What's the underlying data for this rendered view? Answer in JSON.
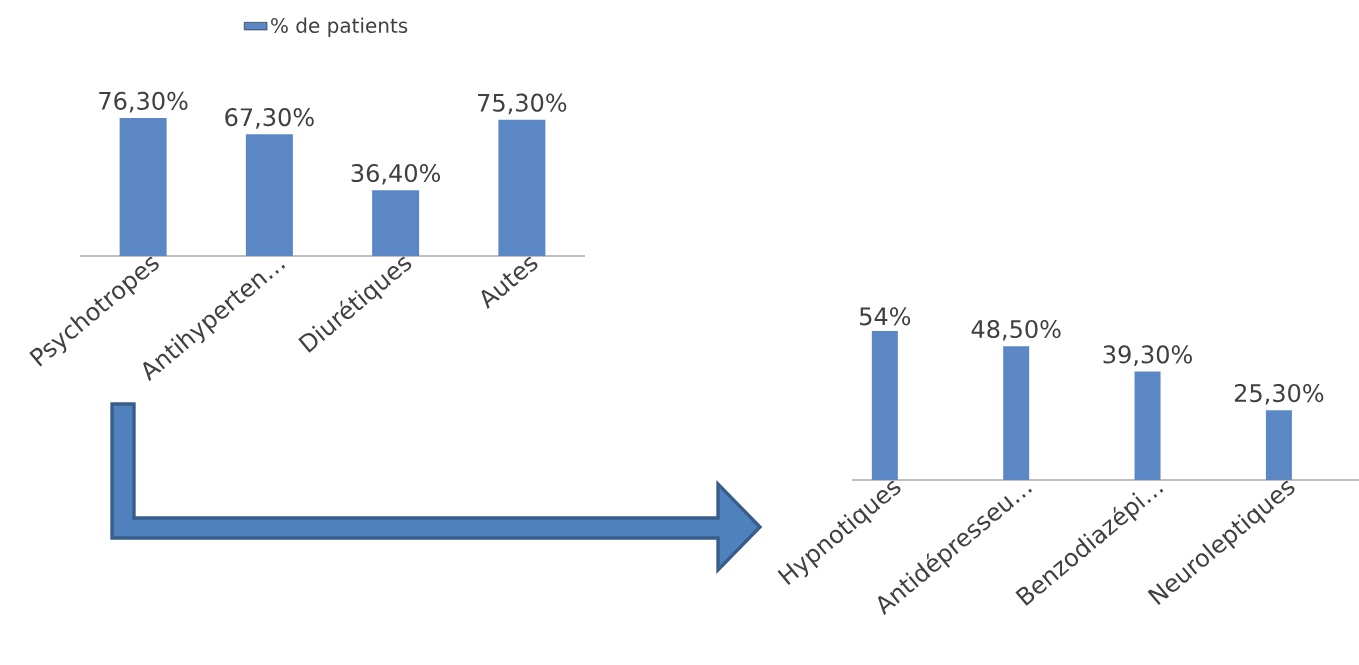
{
  "chart_data": [
    {
      "type": "bar",
      "categories": [
        "Psychotropes",
        "Antihyperten…",
        "Diurétiques",
        "Autes"
      ],
      "legend": "top",
      "series": [
        {
          "name": "% de patients",
          "color": "#5b87c5",
          "values": [
            76.3,
            67.3,
            36.4,
            75.3
          ],
          "value_labels": [
            "76,30%",
            "67,30%",
            "36,40%",
            "75,30%"
          ]
        }
      ]
    },
    {
      "type": "bar",
      "categories": [
        "Hypnotiques",
        "Antidépresseu…",
        "Benzodiazépi…",
        "Neuroleptiques"
      ],
      "color": "#5b87c5",
      "values": [
        54,
        48.5,
        39.3,
        25.3
      ],
      "value_labels": [
        "54%",
        "48,50%",
        "39,30%",
        "25,30%"
      ]
    }
  ]
}
